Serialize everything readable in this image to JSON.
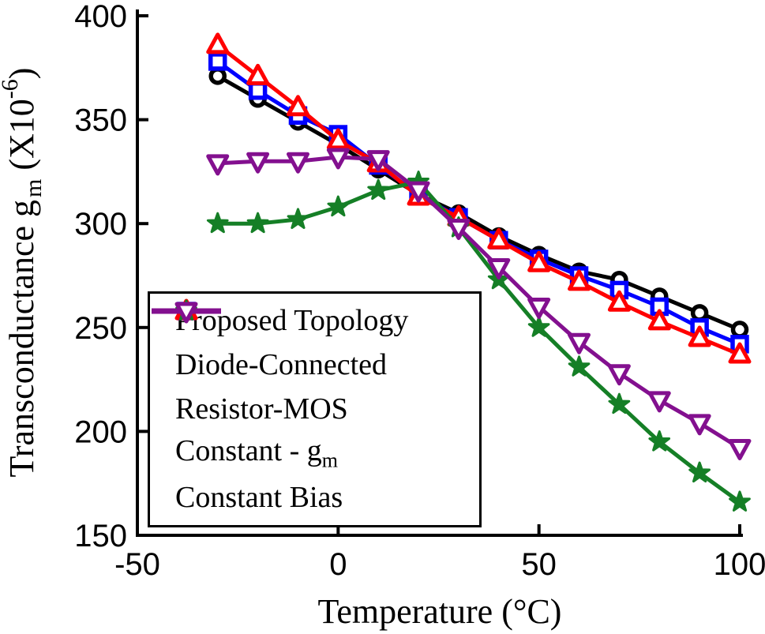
{
  "figure": {
    "background": "#ffffff",
    "axis_color": "#000000"
  },
  "chart_data": {
    "type": "line",
    "title": "",
    "xlabel": "Temperature (°C)",
    "ylabel": "Transconductance g_m (X10^-6)",
    "ylabel_parts": {
      "main": "Transconductance g",
      "sub": "m",
      "mid": " (X10",
      "sup": "-6",
      "end": ")"
    },
    "xlim": [
      -50,
      100
    ],
    "ylim": [
      150,
      400
    ],
    "x_ticks": [
      -50,
      0,
      50,
      100
    ],
    "y_ticks": [
      400,
      350,
      300,
      250,
      200,
      150
    ],
    "grid": false,
    "legend_position": "lower-left",
    "x": [
      -30,
      -20,
      -10,
      0,
      10,
      20,
      30,
      40,
      50,
      60,
      70,
      80,
      90,
      100
    ],
    "series": [
      {
        "name": "Proposed Topology",
        "color": "#000000",
        "marker": "circle",
        "values": [
          371,
          360,
          349,
          338,
          326,
          314,
          305,
          294,
          285,
          277,
          273,
          265,
          257,
          249
        ]
      },
      {
        "name": "Diode-Connected",
        "color": "#0000ff",
        "marker": "square",
        "values": [
          378,
          364,
          352,
          343,
          328,
          314,
          303,
          292,
          283,
          275,
          268,
          260,
          250,
          242
        ]
      },
      {
        "name": "Resistor-MOS",
        "color": "#ff0000",
        "marker": "triangle-up",
        "values": [
          386,
          371,
          356,
          340,
          329,
          313,
          303,
          292,
          281,
          272,
          262,
          253,
          245,
          237
        ]
      },
      {
        "name": "Constant - gm",
        "label_parts": {
          "main": "Constant - g",
          "sub": "m"
        },
        "color": "#157f26",
        "marker": "pentagram",
        "values": [
          300,
          300,
          302,
          308,
          316,
          320,
          298,
          273,
          250,
          231,
          213,
          195,
          180,
          166
        ]
      },
      {
        "name": "Constant Bias",
        "color": "#83108f",
        "marker": "triangle-down",
        "values": [
          329,
          330,
          330,
          332,
          331,
          316,
          298,
          279,
          260,
          243,
          228,
          215,
          204,
          192
        ]
      }
    ]
  }
}
